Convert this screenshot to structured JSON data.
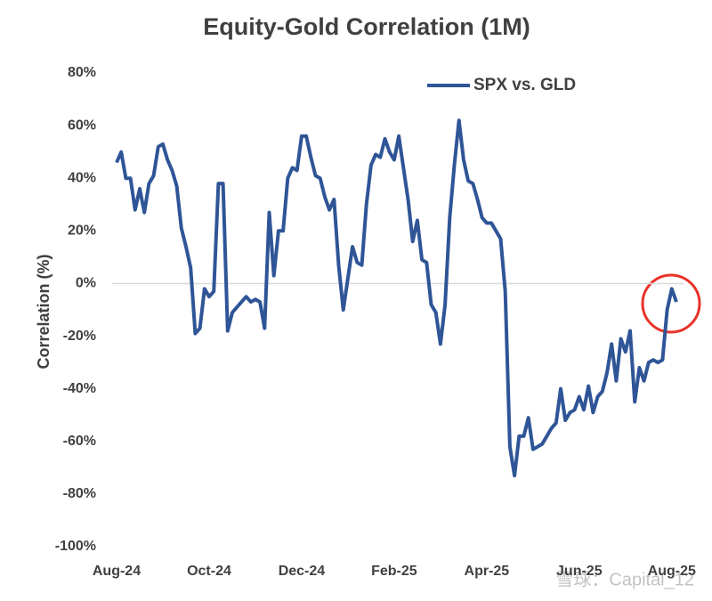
{
  "chart_data": {
    "type": "line",
    "title": "Equity-Gold Correlation (1M)",
    "y_label": "Correlation (%)",
    "categories": [
      "Aug-24",
      null,
      null,
      null,
      null,
      null,
      null,
      null,
      null,
      null,
      null,
      null,
      null,
      null,
      null,
      null,
      null,
      null,
      null,
      null,
      "Oct-24",
      null,
      null,
      null,
      null,
      null,
      null,
      null,
      null,
      null,
      null,
      null,
      null,
      null,
      null,
      null,
      null,
      null,
      null,
      null,
      "Dec-24",
      null,
      null,
      null,
      null,
      null,
      null,
      null,
      null,
      null,
      null,
      null,
      null,
      null,
      null,
      null,
      null,
      null,
      null,
      null,
      "Feb-25",
      null,
      null,
      null,
      null,
      null,
      null,
      null,
      null,
      null,
      null,
      null,
      null,
      null,
      null,
      null,
      null,
      null,
      null,
      null,
      "Apr-25",
      null,
      null,
      null,
      null,
      null,
      null,
      null,
      null,
      null,
      null,
      null,
      null,
      null,
      null,
      null,
      null,
      null,
      null,
      null,
      "Jun-25",
      null,
      null,
      null,
      null,
      null,
      null,
      null,
      null,
      null,
      null,
      null,
      null,
      null,
      null,
      null,
      null,
      null,
      null,
      null,
      "Aug-25",
      null
    ],
    "series": [
      {
        "name": "SPX vs. GLD",
        "color": "#2f5597",
        "values": [
          46,
          50,
          40,
          40,
          28,
          36,
          27,
          38,
          41,
          52,
          53,
          47,
          43,
          37,
          21,
          14,
          6,
          -19,
          -17,
          -2,
          -5,
          -3,
          38,
          38,
          -18,
          -11,
          -9,
          -7,
          -5,
          -7,
          -6,
          -7,
          -17,
          27,
          3,
          20,
          20,
          40,
          44,
          43,
          56,
          56,
          48,
          41,
          40,
          33,
          28,
          32,
          7,
          -10,
          2,
          14,
          8,
          7,
          30,
          45,
          49,
          48,
          55,
          50,
          47,
          56,
          44,
          32,
          16,
          24,
          9,
          8,
          -8,
          -11,
          -23,
          -8,
          25,
          45,
          62,
          47,
          39,
          38,
          32,
          25,
          23,
          23,
          20,
          17,
          -3,
          -62,
          -73,
          -58,
          -58,
          -51,
          -63,
          -62,
          -61,
          -58,
          -55,
          -53,
          -40,
          -52,
          -49,
          -48,
          -43,
          -48,
          -39,
          -49,
          -43,
          -41,
          -34,
          -23,
          -37,
          -21,
          -26,
          -18,
          -45,
          -32,
          -37,
          -30,
          -29,
          -30,
          -29,
          -10,
          -2,
          -7
        ]
      }
    ],
    "ylim": [
      -100,
      80
    ],
    "yticks": [
      {
        "value": 80,
        "label": "80%"
      },
      {
        "value": 60,
        "label": "60%"
      },
      {
        "value": 40,
        "label": "40%"
      },
      {
        "value": 20,
        "label": "20%"
      },
      {
        "value": 0,
        "label": "0%"
      },
      {
        "value": -20,
        "label": "-20%"
      },
      {
        "value": -40,
        "label": "-40%"
      },
      {
        "value": -60,
        "label": "-60%"
      },
      {
        "value": -80,
        "label": "-80%"
      },
      {
        "value": -100,
        "label": "-100%"
      }
    ],
    "grid": false,
    "legend": "top-right",
    "watermark": "雪球：Capital_12"
  }
}
